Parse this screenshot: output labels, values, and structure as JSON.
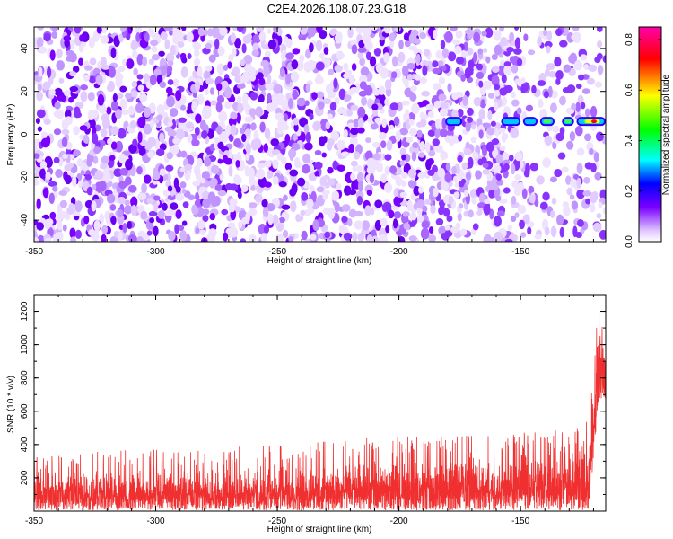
{
  "title": "C2E4.2026.108.07.23.G18",
  "chart_data": [
    {
      "type": "heatmap",
      "xlabel": "Height of straight line (km)",
      "ylabel": "Frequency (Hz)",
      "xlim": [
        -350,
        -115
      ],
      "ylim": [
        -50,
        50
      ],
      "xticks": [
        -350,
        -300,
        -250,
        -200,
        -150
      ],
      "yticks": [
        -40,
        -20,
        0,
        20,
        40
      ],
      "colorbar": {
        "label": "Normalized spectral amplitude",
        "range": [
          0,
          0.85
        ],
        "ticks": [
          "0.0",
          "0.2",
          "0.4",
          "0.6",
          "0.8"
        ],
        "colors": [
          "#ffffff",
          "#7a00ff",
          "#0000ff",
          "#00ffff",
          "#00ff00",
          "#ffff00",
          "#ff0000",
          "#ff00aa"
        ]
      },
      "ridge": {
        "frequency": 6,
        "segments": [
          {
            "x": [
              -181,
              -174
            ],
            "peak": 0.35
          },
          {
            "x": [
              -158,
              -150
            ],
            "peak": 0.35
          },
          {
            "x": [
              -149,
              -143
            ],
            "peak": 0.4
          },
          {
            "x": [
              -142,
              -136
            ],
            "peak": 0.45
          },
          {
            "x": [
              -133,
              -128
            ],
            "peak": 0.5
          },
          {
            "x": [
              -127,
              -115
            ],
            "peak": 0.85
          }
        ]
      }
    },
    {
      "type": "line",
      "xlabel": "Height of straight line (km)",
      "ylabel": "SNR (10 * v/v)",
      "xlim": [
        -350,
        -115
      ],
      "ylim": [
        0,
        1300
      ],
      "xticks": [
        -350,
        -300,
        -250,
        -200,
        -150
      ],
      "yticks": [
        200,
        400,
        600,
        800,
        1000,
        1200
      ],
      "line_color": "#f03030",
      "series_summary": [
        {
          "x": -350,
          "y_mean": 130,
          "y_max": 330
        },
        {
          "x": -300,
          "y_mean": 140,
          "y_max": 380
        },
        {
          "x": -250,
          "y_mean": 150,
          "y_max": 400
        },
        {
          "x": -200,
          "y_mean": 170,
          "y_max": 450
        },
        {
          "x": -150,
          "y_mean": 190,
          "y_max": 470
        },
        {
          "x": -130,
          "y_mean": 210,
          "y_max": 500
        },
        {
          "x": -122,
          "y_mean": 250,
          "y_max": 550
        },
        {
          "x": -120,
          "y_mean": 600,
          "y_max": 900
        },
        {
          "x": -118,
          "y_mean": 950,
          "y_max": 1280
        },
        {
          "x": -116,
          "y_mean": 900,
          "y_max": 1150
        },
        {
          "x": -115,
          "y_mean": 850,
          "y_max": 1050
        }
      ]
    }
  ]
}
